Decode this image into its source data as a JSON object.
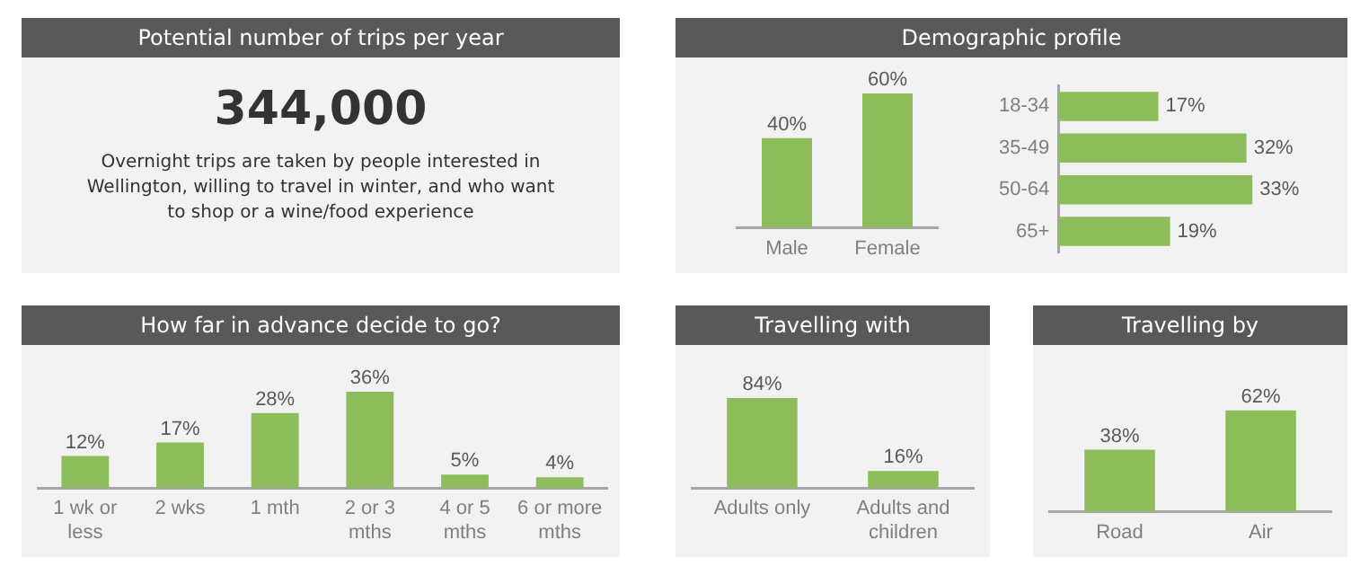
{
  "chart_data": [
    {
      "type": "other",
      "title": "Potential number of trips per year",
      "annotations": [
        "344,000",
        "Overnight trips are taken by people interested in Wellington, willing to travel in winter, and who want to shop or a wine/food experience"
      ]
    },
    {
      "type": "bar",
      "title": "Demographic profile",
      "categories": [
        "Male",
        "Female"
      ],
      "values": [
        40,
        60
      ],
      "value_labels": [
        "40%",
        "60%"
      ],
      "color": "#8cbd5a"
    },
    {
      "type": "bar",
      "orientation": "horizontal",
      "categories": [
        "18-34",
        "35-49",
        "50-64",
        "65+"
      ],
      "values": [
        17,
        32,
        33,
        19
      ],
      "value_labels": [
        "17%",
        "32%",
        "33%",
        "19%"
      ],
      "color": "#8cbd5a"
    },
    {
      "type": "bar",
      "title": "How far in advance decide to go?",
      "categories": [
        "1 wk or less",
        "2 wks",
        "1 mth",
        "2 or 3 mths",
        "4 or 5 mths",
        "6 or more mths"
      ],
      "values": [
        12,
        17,
        28,
        36,
        5,
        4
      ],
      "value_labels": [
        "12%",
        "17%",
        "28%",
        "36%",
        "5%",
        "4%"
      ],
      "color": "#8cbd5a"
    },
    {
      "type": "bar",
      "title": "Travelling with",
      "categories": [
        "Adults only",
        "Adults and children"
      ],
      "values": [
        84,
        16
      ],
      "value_labels": [
        "84%",
        "16%"
      ],
      "color": "#8cbd5a"
    },
    {
      "type": "bar",
      "title": "Travelling by",
      "categories": [
        "Road",
        "Air"
      ],
      "values": [
        38,
        62
      ],
      "value_labels": [
        "38%",
        "62%"
      ],
      "color": "#8cbd5a"
    }
  ]
}
